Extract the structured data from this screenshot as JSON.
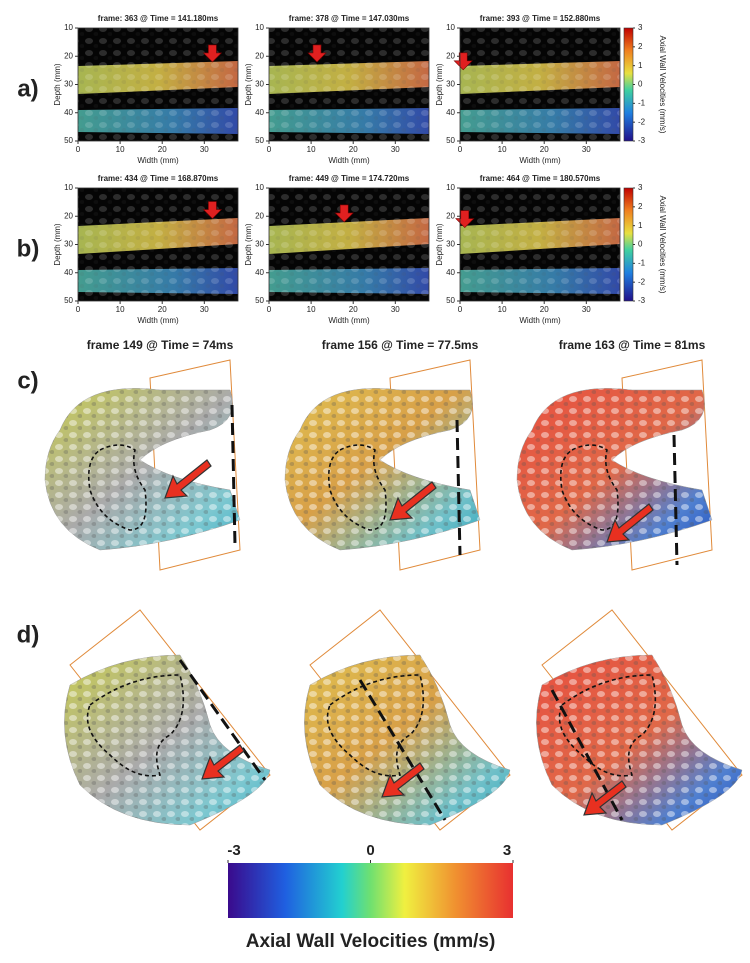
{
  "ultrasound_rows": [
    {
      "label": "a)",
      "panels": [
        "frame: 363 @ Time = 141.180ms",
        "frame: 378 @ Time = 147.030ms",
        "frame: 393 @ Time = 152.880ms"
      ]
    },
    {
      "label": "b)",
      "panels": [
        "frame: 434 @ Time = 168.870ms",
        "frame: 449 @ Time = 174.720ms",
        "frame: 464 @ Time = 180.570ms"
      ]
    }
  ],
  "axes": {
    "ylabel": "Depth (mm)",
    "xlabel": "Width (mm)",
    "yticks": [
      10,
      20,
      30,
      40,
      50
    ],
    "xticks": [
      0,
      10,
      20,
      30
    ]
  },
  "colorbar": {
    "label": "Axial Wall Velocities (mm/s)",
    "ticks": [
      3,
      2,
      1,
      0,
      -1,
      -2,
      -3
    ]
  },
  "render_rows": [
    {
      "label": "c)",
      "titles": [
        "frame 149 @ Time = 74ms",
        "frame 156 @ Time = 77.5ms",
        "frame 163 @ Time = 81ms"
      ]
    },
    {
      "label": "d)"
    }
  ],
  "legend": {
    "ticks": [
      -3,
      0,
      3
    ],
    "label": "Axial Wall Velocities (mm/s)"
  }
}
